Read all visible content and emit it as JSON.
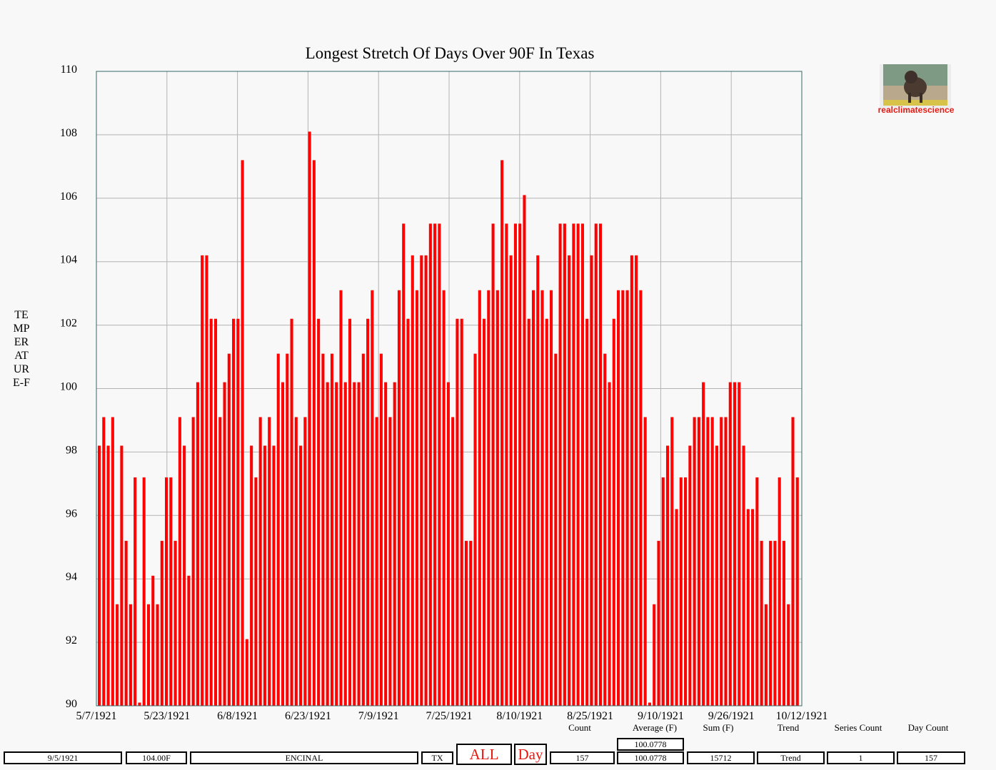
{
  "chart_data": {
    "type": "bar",
    "title": "Longest Stretch Of Days Over 90F In Texas",
    "ylabel": "TEMPERATURE-F",
    "xlabel": "",
    "ylim": [
      90,
      110
    ],
    "yticks": [
      90,
      92,
      94,
      96,
      98,
      100,
      102,
      104,
      106,
      108,
      110
    ],
    "xtick_labels": [
      "5/7/1921",
      "5/23/1921",
      "6/8/1921",
      "6/23/1921",
      "7/9/1921",
      "7/25/1921",
      "8/10/1921",
      "8/25/1921",
      "9/10/1921",
      "9/26/1921",
      "10/12/1921"
    ],
    "grid": true,
    "bar_color": "#ff0000",
    "start_date": "5/7/1921",
    "values": [
      98.2,
      99.1,
      98.2,
      99.1,
      93.2,
      98.2,
      95.2,
      93.2,
      97.2,
      90.1,
      97.2,
      93.2,
      94.1,
      93.2,
      95.2,
      97.2,
      97.2,
      95.2,
      99.1,
      98.2,
      94.1,
      99.1,
      100.2,
      104.2,
      104.2,
      102.2,
      102.2,
      99.1,
      100.2,
      101.1,
      102.2,
      102.2,
      107.2,
      92.1,
      98.2,
      97.2,
      99.1,
      98.2,
      99.1,
      98.2,
      101.1,
      100.2,
      101.1,
      102.2,
      99.1,
      98.2,
      99.1,
      108.1,
      107.2,
      102.2,
      101.1,
      100.2,
      101.1,
      100.2,
      103.1,
      100.2,
      102.2,
      100.2,
      100.2,
      101.1,
      102.2,
      103.1,
      99.1,
      101.1,
      100.2,
      99.1,
      100.2,
      103.1,
      105.2,
      102.2,
      104.2,
      103.1,
      104.2,
      104.2,
      105.2,
      105.2,
      105.2,
      103.1,
      100.2,
      99.1,
      102.2,
      102.2,
      95.2,
      95.2,
      101.1,
      103.1,
      102.2,
      103.1,
      105.2,
      103.1,
      107.2,
      105.2,
      104.2,
      105.2,
      105.2,
      106.1,
      102.2,
      103.1,
      104.2,
      103.1,
      102.2,
      103.1,
      101.1,
      105.2,
      105.2,
      104.2,
      105.2,
      105.2,
      105.2,
      102.2,
      104.2,
      105.2,
      105.2,
      101.1,
      100.2,
      102.2,
      103.1,
      103.1,
      103.1,
      104.2,
      104.2,
      103.1,
      99.1,
      90.1,
      93.2,
      95.2,
      97.2,
      98.2,
      99.1,
      96.2,
      97.2,
      97.2,
      98.2,
      99.1,
      99.1,
      100.2,
      99.1,
      99.1,
      98.2,
      99.1,
      99.1,
      100.2,
      100.2,
      100.2,
      98.2,
      96.2,
      96.2,
      97.2,
      95.2,
      93.2,
      95.2,
      95.2,
      97.2,
      95.2,
      93.2,
      99.1,
      97.2
    ]
  },
  "logo": {
    "text": "realclimatescience"
  },
  "stats": {
    "labels": [
      "Count",
      "Average (F)",
      "Sum (F)",
      "Trend",
      "Series Count",
      "Day Count"
    ],
    "average_top": "100.0778"
  },
  "footer": {
    "date": "9/5/1921",
    "temp": "104.00F",
    "station": "ENCINAL",
    "state": "TX",
    "all": "ALL",
    "day": "Day",
    "count": "157",
    "average": "100.0778",
    "sum": "15712",
    "trend": "Trend",
    "series_count": "1",
    "day_count": "157"
  }
}
